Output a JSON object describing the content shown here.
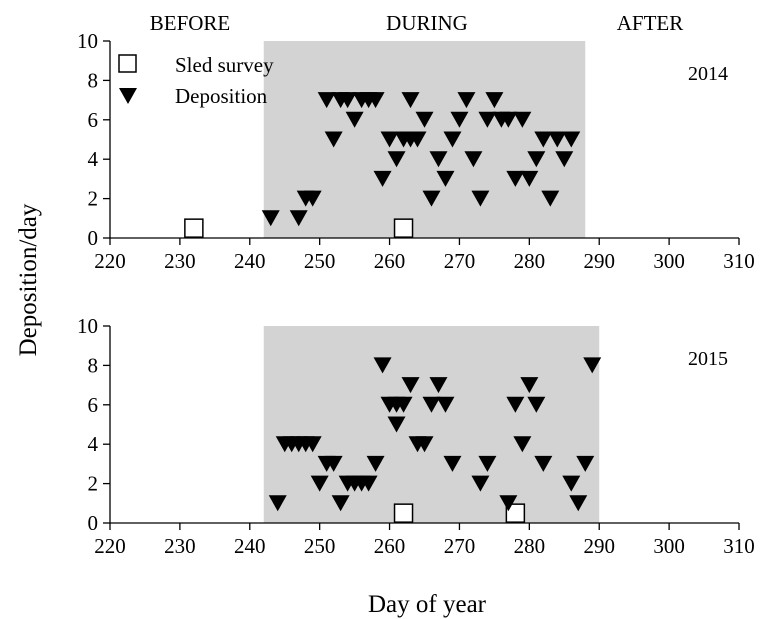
{
  "chart_data": [
    {
      "type": "scatter",
      "year_label": "2014",
      "xlim": [
        220,
        310
      ],
      "ylim": [
        0,
        10
      ],
      "x_ticks": [
        220,
        230,
        240,
        250,
        260,
        270,
        280,
        290,
        300,
        310
      ],
      "y_ticks": [
        0,
        2,
        4,
        6,
        8,
        10
      ],
      "shaded_period": [
        242,
        288
      ],
      "period_labels": {
        "before": "BEFORE",
        "during": "DURING",
        "after": "AFTER"
      },
      "legend": {
        "position": "top-left",
        "sled": "Sled survey",
        "deposition": "Deposition"
      },
      "series": [
        {
          "key": "sled",
          "marker": "open-square",
          "x": [
            232,
            262
          ],
          "y": [
            0.5,
            0.5
          ]
        },
        {
          "key": "deposition",
          "marker": "filled-triangle-down",
          "x": [
            243,
            247,
            248,
            249,
            251,
            252,
            253,
            254,
            255,
            256,
            257,
            258,
            259,
            260,
            261,
            262,
            263,
            263,
            264,
            265,
            266,
            267,
            268,
            269,
            270,
            271,
            272,
            273,
            274,
            275,
            276,
            277,
            278,
            279,
            280,
            281,
            282,
            283,
            284,
            285,
            286
          ],
          "y": [
            1,
            1,
            2,
            2,
            7,
            5,
            7,
            7,
            6,
            7,
            7,
            7,
            3,
            5,
            4,
            5,
            5,
            7,
            5,
            6,
            2,
            4,
            3,
            5,
            6,
            7,
            4,
            2,
            6,
            7,
            6,
            6,
            3,
            6,
            3,
            4,
            5,
            2,
            5,
            4,
            5
          ]
        }
      ]
    },
    {
      "type": "scatter",
      "year_label": "2015",
      "xlim": [
        220,
        310
      ],
      "ylim": [
        0,
        10
      ],
      "x_ticks": [
        220,
        230,
        240,
        250,
        260,
        270,
        280,
        290,
        300,
        310
      ],
      "y_ticks": [
        0,
        2,
        4,
        6,
        8,
        10
      ],
      "shaded_period": [
        242,
        290
      ],
      "series": [
        {
          "key": "sled",
          "marker": "open-square",
          "x": [
            262,
            278
          ],
          "y": [
            0.5,
            0.5
          ]
        },
        {
          "key": "deposition",
          "marker": "filled-triangle-down",
          "x": [
            244,
            245,
            246,
            247,
            248,
            249,
            250,
            251,
            252,
            253,
            254,
            255,
            256,
            257,
            258,
            259,
            260,
            261,
            261,
            262,
            263,
            264,
            265,
            266,
            267,
            268,
            269,
            273,
            274,
            277,
            278,
            279,
            280,
            281,
            282,
            286,
            287,
            288,
            289
          ],
          "y": [
            1,
            4,
            4,
            4,
            4,
            4,
            2,
            3,
            3,
            1,
            2,
            2,
            2,
            2,
            3,
            8,
            6,
            5,
            6,
            6,
            7,
            4,
            4,
            6,
            7,
            6,
            3,
            2,
            3,
            1,
            6,
            4,
            7,
            6,
            3,
            2,
            1,
            3,
            8
          ]
        }
      ]
    }
  ],
  "axes": {
    "xlabel": "Day of year",
    "ylabel": "Deposition/day"
  }
}
